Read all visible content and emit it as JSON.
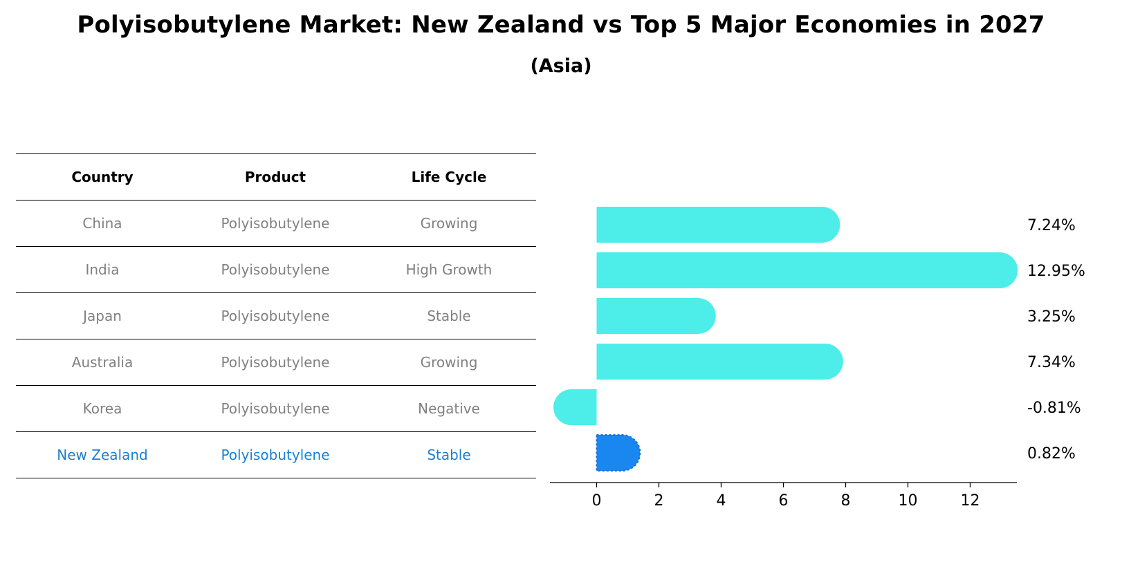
{
  "title": "Polyisobutylene Market: New Zealand vs Top 5 Major Economies in 2027",
  "subtitle": "(Asia)",
  "table": {
    "headers": [
      "Country",
      "Product",
      "Life Cycle"
    ],
    "rows": [
      [
        "China",
        "Polyisobutylene",
        "Growing"
      ],
      [
        "India",
        "Polyisobutylene",
        "High Growth"
      ],
      [
        "Japan",
        "Polyisobutylene",
        "Stable"
      ],
      [
        "Australia",
        "Polyisobutylene",
        "Growing"
      ],
      [
        "Korea",
        "Polyisobutylene",
        "Negative"
      ],
      [
        "New Zealand",
        "Polyisobutylene",
        "Stable"
      ]
    ]
  },
  "chart_data": {
    "type": "bar",
    "orientation": "horizontal",
    "categories": [
      "China",
      "India",
      "Japan",
      "Australia",
      "Korea",
      "New Zealand"
    ],
    "values": [
      7.24,
      12.95,
      3.25,
      7.34,
      -0.81,
      0.82
    ],
    "value_labels": [
      "7.24%",
      "12.95%",
      "3.25%",
      "7.34%",
      "-0.81%",
      "0.82%"
    ],
    "highlight": "New Zealand",
    "xlim": [
      -1.5,
      13.5
    ],
    "xticks": [
      0,
      2,
      4,
      6,
      8,
      10,
      12
    ],
    "colors": {
      "default": "#4dede9",
      "highlight": "#1a87f0"
    },
    "grid": false
  }
}
